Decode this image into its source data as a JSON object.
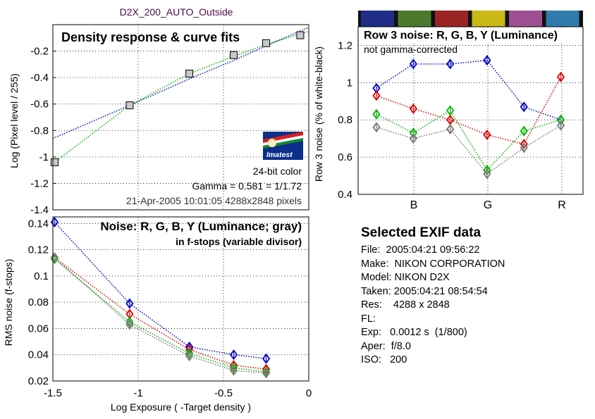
{
  "page_title": "D2X_200_AUTO_Outside",
  "logo_text": "Imatest",
  "colors": {
    "blue": "#0000cc",
    "green": "#00b400",
    "red": "#dd0000",
    "gray": "#777777",
    "marker_fill": "#c8c8c8",
    "title_purple": "#4b0a4b"
  },
  "color_strip": [
    "#1f2c88",
    "#4c7a2c",
    "#9a2323",
    "#c9b816",
    "#9c4f92",
    "#2f7bab"
  ],
  "chart_data": [
    {
      "type": "line",
      "title": "Density response & curve fits",
      "xlabel": "",
      "ylabel": "Log (Pixel level / 255)",
      "xlim": [
        -1.5,
        0
      ],
      "ylim": [
        -1.4,
        0
      ],
      "yticks": [
        "-0.2",
        "-0.4",
        "-0.6",
        "-0.8",
        "-1",
        "-1.2",
        "-1.4"
      ],
      "grid": true,
      "info_lines": [
        "24-bit color",
        "Gamma = 0.581 = 1/1.72",
        "21-Apr-2005 10:01:05   4288x2848 pixels"
      ],
      "points": {
        "x": [
          -1.49,
          -1.05,
          -0.7,
          -0.44,
          -0.25,
          -0.05
        ],
        "y": [
          -1.04,
          -0.61,
          -0.37,
          -0.23,
          -0.14,
          -0.08
        ]
      },
      "series": [
        {
          "x": [
            -1.5,
            -1.05,
            -0.7,
            -0.44,
            -0.25,
            0
          ],
          "y": [
            -0.86,
            -0.61,
            -0.41,
            -0.27,
            -0.16,
            -0.02
          ]
        },
        {
          "x": [
            -1.49,
            -1.05,
            -0.7,
            -0.44,
            -0.25,
            0
          ],
          "y": [
            -1.04,
            -0.61,
            -0.37,
            -0.24,
            -0.15,
            -0.05
          ]
        }
      ]
    },
    {
      "type": "line",
      "title": "Row 3 noise: R, G, B, Y (Luminance)",
      "subtitle": "not gamma-corrected",
      "xlabel": "",
      "ylabel": "Row 3 noise (% of white-black)",
      "ylim": [
        0.4,
        1.3
      ],
      "yticks": [
        "1.2",
        "1",
        "0.8",
        "0.6",
        "0.4"
      ],
      "xticks": [
        "B",
        "G",
        "R"
      ],
      "grid": true,
      "x": [
        1,
        2,
        3,
        4,
        5,
        6
      ],
      "series": [
        {
          "values": [
            0.97,
            1.1,
            1.1,
            1.12,
            0.87,
            0.8
          ]
        },
        {
          "values": [
            0.93,
            0.86,
            0.8,
            0.72,
            0.67,
            1.03
          ]
        },
        {
          "values": [
            0.83,
            0.73,
            0.85,
            0.53,
            0.74,
            0.8
          ]
        },
        {
          "values": [
            0.76,
            0.7,
            0.75,
            0.51,
            0.65,
            0.77
          ]
        }
      ]
    },
    {
      "type": "line",
      "title": "Noise: R, G, B, Y (Luminance; gray)",
      "subtitle": "in f-stops (variable divisor)",
      "xlabel": "Log Exposure ( -Target density )",
      "ylabel": "RMS noise (f-stops)",
      "xlim": [
        -1.5,
        0
      ],
      "ylim": [
        0.02,
        0.145
      ],
      "xticks": [
        "-1.5",
        "-1",
        "-0.5",
        "0"
      ],
      "yticks": [
        "0.14",
        "0.12",
        "0.1",
        "0.08",
        "0.06",
        "0.04",
        "0.02"
      ],
      "grid": true,
      "x": [
        -1.49,
        -1.05,
        -0.7,
        -0.44,
        -0.25
      ],
      "series": [
        {
          "values": [
            0.141,
            0.079,
            0.046,
            0.04,
            0.037
          ]
        },
        {
          "values": [
            0.114,
            0.071,
            0.044,
            0.032,
            0.029
          ]
        },
        {
          "values": [
            0.113,
            0.065,
            0.041,
            0.03,
            0.027
          ]
        },
        {
          "values": [
            0.114,
            0.063,
            0.039,
            0.028,
            0.026
          ]
        }
      ]
    }
  ],
  "exif": {
    "heading": "Selected EXIF data",
    "lines": [
      "File:  2005:04:21 09:56:22",
      "Make:  NIKON CORPORATION",
      "Model: NIKON D2X",
      "Taken: 2005:04:21 08:54:54",
      "Res:    4288 x 2848",
      "FL:",
      "Exp:   0.0012 s  (1/800)",
      "Aper:  f/8.0",
      "ISO:   200"
    ]
  }
}
